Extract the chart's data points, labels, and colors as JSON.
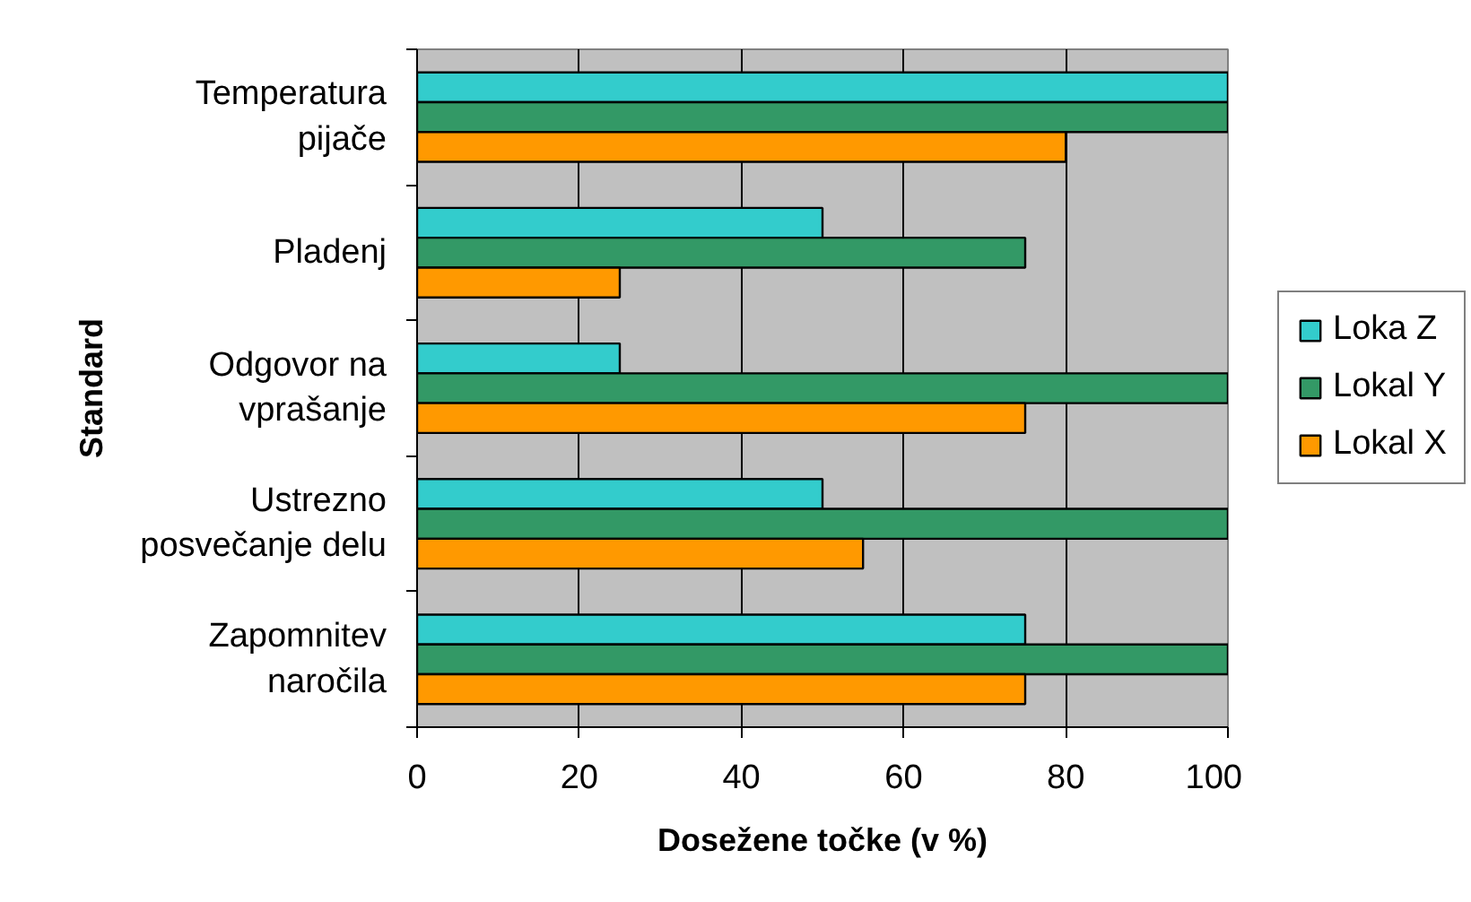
{
  "chart_data": {
    "type": "bar",
    "orientation": "horizontal",
    "xlabel": "Dosežene točke (v %)",
    "ylabel": "Standard",
    "categories": [
      "Temperatura pijače",
      "Pladenj",
      "Odgovor na vprašanje",
      "Ustrezno posvečanje delu",
      "Zapomnitev naročila"
    ],
    "series": [
      {
        "name": "Loka Z",
        "color": "#33cccc",
        "values": [
          100,
          50,
          25,
          50,
          75
        ]
      },
      {
        "name": "Lokal Y",
        "color": "#339966",
        "values": [
          100,
          75,
          100,
          100,
          100
        ]
      },
      {
        "name": "Lokal X",
        "color": "#ff9900",
        "values": [
          80,
          25,
          75,
          55,
          75
        ]
      }
    ],
    "xlim": [
      0,
      100
    ],
    "xticks": [
      0,
      20,
      40,
      60,
      80,
      100
    ],
    "grid": "x",
    "legend": "right"
  }
}
